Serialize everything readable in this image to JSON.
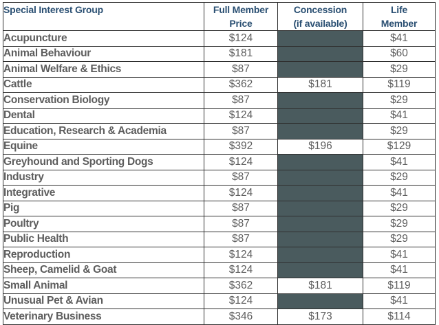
{
  "headers": {
    "group": "Special Interest Group",
    "full_member": [
      "Full Member",
      "Price"
    ],
    "concession": [
      "Concession",
      "(if available)"
    ],
    "life_member": [
      "Life",
      "Member"
    ]
  },
  "colors": {
    "text_blue": "#2a4f72",
    "price_grey": "#5d5d5d",
    "unavailable_fill": "#4a5b5e",
    "border": "#2f2f2f"
  },
  "rows": [
    {
      "group": "Acupuncture",
      "full": "$124",
      "concession": null,
      "life": "$41"
    },
    {
      "group": "Animal Behaviour",
      "full": "$181",
      "concession": null,
      "life": "$60"
    },
    {
      "group": "Animal Welfare & Ethics",
      "full": "$87",
      "concession": null,
      "life": "$29"
    },
    {
      "group": "Cattle",
      "full": "$362",
      "concession": "$181",
      "life": "$119"
    },
    {
      "group": "Conservation Biology",
      "full": "$87",
      "concession": null,
      "life": "$29"
    },
    {
      "group": "Dental",
      "full": "$124",
      "concession": null,
      "life": "$41"
    },
    {
      "group": "Education, Research & Academia",
      "full": "$87",
      "concession": null,
      "life": "$29"
    },
    {
      "group": "Equine",
      "full": "$392",
      "concession": "$196",
      "life": "$129"
    },
    {
      "group": "Greyhound and Sporting Dogs",
      "full": "$124",
      "concession": null,
      "life": "$41"
    },
    {
      "group": "Industry",
      "full": "$87",
      "concession": null,
      "life": "$29"
    },
    {
      "group": "Integrative",
      "full": "$124",
      "concession": null,
      "life": "$41"
    },
    {
      "group": "Pig",
      "full": "$87",
      "concession": null,
      "life": "$29"
    },
    {
      "group": "Poultry",
      "full": "$87",
      "concession": null,
      "life": "$29"
    },
    {
      "group": "Public Health",
      "full": "$87",
      "concession": null,
      "life": "$29"
    },
    {
      "group": "Reproduction",
      "full": "$124",
      "concession": null,
      "life": "$41"
    },
    {
      "group": "Sheep, Camelid & Goat",
      "full": "$124",
      "concession": null,
      "life": "$41"
    },
    {
      "group": "Small Animal",
      "full": "$362",
      "concession": "$181",
      "life": "$119"
    },
    {
      "group": "Unusual Pet & Avian",
      "full": "$124",
      "concession": null,
      "life": "$41"
    },
    {
      "group": "Veterinary Business",
      "full": "$346",
      "concession": "$173",
      "life": "$114"
    }
  ]
}
